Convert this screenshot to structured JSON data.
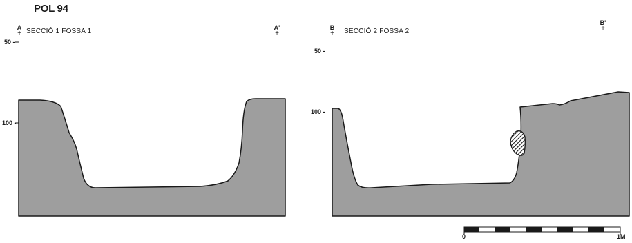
{
  "title": "POL 94",
  "colors": {
    "fill": "#9e9e9e",
    "stroke": "#1a1a1a",
    "background": "#ffffff"
  },
  "section1": {
    "label": "SECCIÓ 1 FOSSA 1",
    "start_point": "A",
    "end_point": "A'",
    "depth_marks": [
      "50 -",
      "100 -"
    ]
  },
  "section2": {
    "label": "SECCIÓ 2 FOSSA 2",
    "start_point": "B",
    "end_point": "B'",
    "depth_marks": [
      "50 -",
      "100 -"
    ],
    "feature": "hatched-stone"
  },
  "scale_bar": {
    "start_label": "0",
    "end_label": "1M",
    "segments": 10
  }
}
